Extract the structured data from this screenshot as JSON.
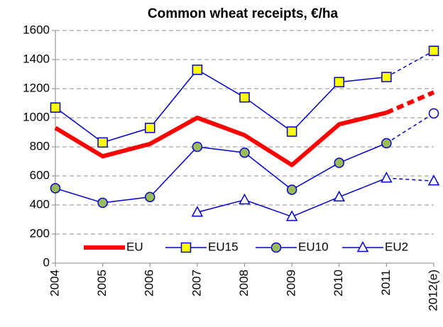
{
  "chart_data": {
    "type": "line",
    "title": "Common wheat receipts, €/ha",
    "categories": [
      "2004",
      "2005",
      "2006",
      "2007",
      "2008",
      "2009",
      "2010",
      "2011",
      "2012(e)"
    ],
    "series": [
      {
        "name": "EU",
        "color": "#ff0000",
        "marker": "none",
        "dashed_last_segment": true,
        "values": [
          930,
          735,
          820,
          1000,
          880,
          675,
          955,
          1035,
          1175
        ]
      },
      {
        "name": "EU15",
        "color": "#0000cc",
        "marker": "square",
        "marker_fill": "#ffff00",
        "dashed_last_segment": true,
        "values": [
          1070,
          830,
          930,
          1330,
          1140,
          905,
          1245,
          1280,
          1460
        ]
      },
      {
        "name": "EU10",
        "color": "#0000cc",
        "marker": "circle",
        "marker_fill": "#9bbb59",
        "last_marker_fill": "#ffffff",
        "dashed_last_segment": true,
        "values": [
          515,
          415,
          455,
          800,
          760,
          505,
          690,
          825,
          1030
        ]
      },
      {
        "name": "EU2",
        "color": "#0000cc",
        "marker": "triangle",
        "marker_fill": "#ffffff",
        "dashed_last_segment": true,
        "values": [
          null,
          null,
          null,
          350,
          435,
          320,
          455,
          585,
          565
        ]
      }
    ],
    "ylim": [
      0,
      1600
    ],
    "yticks": [
      0,
      200,
      400,
      600,
      800,
      1000,
      1200,
      1400,
      1600
    ],
    "grid": true,
    "legend": "bottom"
  }
}
